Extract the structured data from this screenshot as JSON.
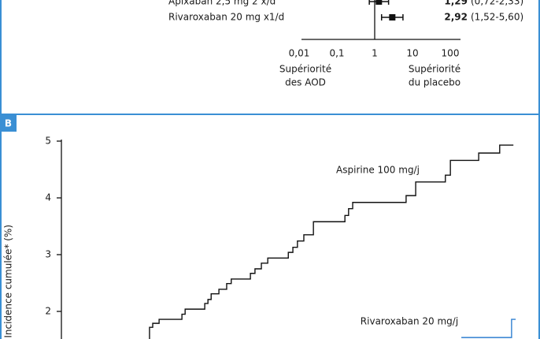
{
  "chart_data": [
    {
      "type": "forest",
      "categories": [
        "Apixaban 2,5 mg 2 x/d",
        "Rivaroxaban 20 mg x1/d"
      ],
      "values": [
        1.29,
        2.92
      ],
      "value_labels": [
        "1,29",
        "2,92"
      ],
      "ci_low": [
        0.72,
        1.52
      ],
      "ci_high": [
        2.33,
        5.6
      ],
      "ci_labels": [
        "(0,72-2,33)",
        "(1,52-5,60)"
      ],
      "xlim": [
        0.01,
        100
      ],
      "log_scale": true,
      "xticks": [
        {
          "value": 0.01,
          "label": "0,01"
        },
        {
          "value": 0.1,
          "label": "0,1"
        },
        1,
        10,
        100
      ],
      "left_annotation": [
        "Supériorité",
        "des AOD"
      ],
      "right_annotation": [
        "Supériorité",
        "du placebo"
      ],
      "color": "#111111"
    },
    {
      "type": "step",
      "panel_label": "B",
      "ylabel": "Incidence cumulée* (%)",
      "ylim": [
        1.5,
        5
      ],
      "yticks": [
        2,
        3,
        4,
        5
      ],
      "xlim": [
        0,
        100
      ],
      "series": [
        {
          "name": "Aspirine 100 mg/j",
          "color": "#111111",
          "x": [
            18.6,
            19.3,
            20.0,
            21.4,
            26.4,
            27.1,
            31.4,
            32.1,
            32.8,
            34.5,
            36.2,
            37.2,
            41.4,
            42.4,
            43.8,
            45.2,
            49.7,
            50.7,
            51.7,
            53.1,
            55.2,
            62.1,
            62.9,
            63.8,
            75.5,
            77.6,
            84.1,
            85.2,
            91.4,
            96.0,
            99.0
          ],
          "values": [
            1.5,
            1.72,
            1.79,
            1.86,
            1.95,
            2.04,
            2.14,
            2.21,
            2.31,
            2.39,
            2.49,
            2.57,
            2.67,
            2.75,
            2.85,
            2.94,
            3.04,
            3.13,
            3.24,
            3.35,
            3.58,
            3.69,
            3.81,
            3.92,
            4.04,
            4.28,
            4.4,
            4.66,
            4.79,
            4.93,
            4.93
          ]
        },
        {
          "name": "Rivaroxaban 20 mg/j",
          "color": "#2f7fd0",
          "x": [
            87.6,
            98.6,
            99.5
          ],
          "values": [
            1.54,
            1.86,
            1.86
          ]
        }
      ]
    }
  ]
}
